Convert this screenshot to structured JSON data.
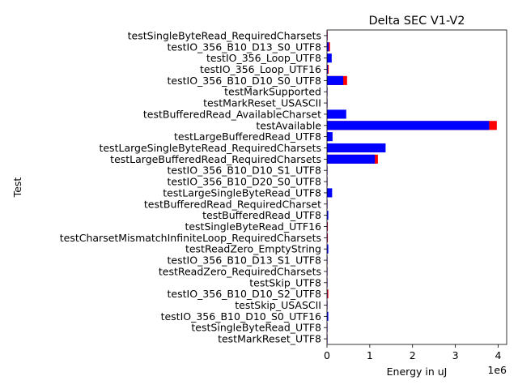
{
  "chart_data": {
    "type": "bar",
    "orientation": "horizontal",
    "title": "Delta SEC V1-V2",
    "xlabel": "Energy in uJ",
    "ylabel": "Test",
    "x_scale_label": "1e6",
    "xlim": [
      0,
      4200000
    ],
    "x_ticks": [
      0,
      1000000,
      2000000,
      3000000,
      4000000
    ],
    "x_tick_labels": [
      "0",
      "1",
      "2",
      "3",
      "4"
    ],
    "categories": [
      "testSingleByteRead_RequiredCharsets",
      "testIO_356_B10_D13_S0_UTF8",
      "testIO_356_Loop_UTF8",
      "testIO_356_Loop_UTF16",
      "testIO_356_B10_D10_S0_UTF8",
      "testMarkSupported",
      "testMarkReset_USASCII",
      "testBufferedRead_AvailableCharset",
      "testAvailable",
      "testLargeBufferedRead_UTF8",
      "testLargeSingleByteRead_RequiredCharsets",
      "testLargeBufferedRead_RequiredCharsets",
      "testIO_356_B10_D10_S1_UTF8",
      "testIO_356_B10_D20_S0_UTF8",
      "testLargeSingleByteRead_UTF8",
      "testBufferedRead_RequiredCharset",
      "testBufferedRead_UTF8",
      "testSingleByteRead_UTF16",
      "testCharsetMismatchInfiniteLoop_RequiredCharsets",
      "testReadZero_EmptyString",
      "testIO_356_B10_D13_S1_UTF8",
      "testReadZero_RequiredCharsets",
      "testSkip_UTF8",
      "testIO_356_B10_D10_S2_UTF8",
      "testSkip_USASCII",
      "testIO_356_B10_D10_S0_UTF16",
      "testSingleByteRead_UTF8",
      "testMarkReset_UTF8"
    ],
    "series": [
      {
        "color": "#ff0000",
        "values": [
          15000,
          70000,
          30000,
          40000,
          470000,
          3000,
          3000,
          20000,
          3970000,
          50000,
          30000,
          1190000,
          10000,
          5000,
          20000,
          5000,
          10000,
          20000,
          20000,
          10000,
          5000,
          3000,
          3000,
          30000,
          3000,
          20000,
          5000,
          3000
        ]
      },
      {
        "color": "#0000ff",
        "values": [
          10000,
          40000,
          110000,
          20000,
          380000,
          2000,
          2000,
          450000,
          3790000,
          130000,
          1370000,
          1120000,
          5000,
          5000,
          120000,
          2000,
          30000,
          5000,
          10000,
          30000,
          2000,
          2000,
          2000,
          5000,
          2000,
          30000,
          2000,
          2000
        ]
      }
    ],
    "grid": false,
    "legend": "none"
  }
}
